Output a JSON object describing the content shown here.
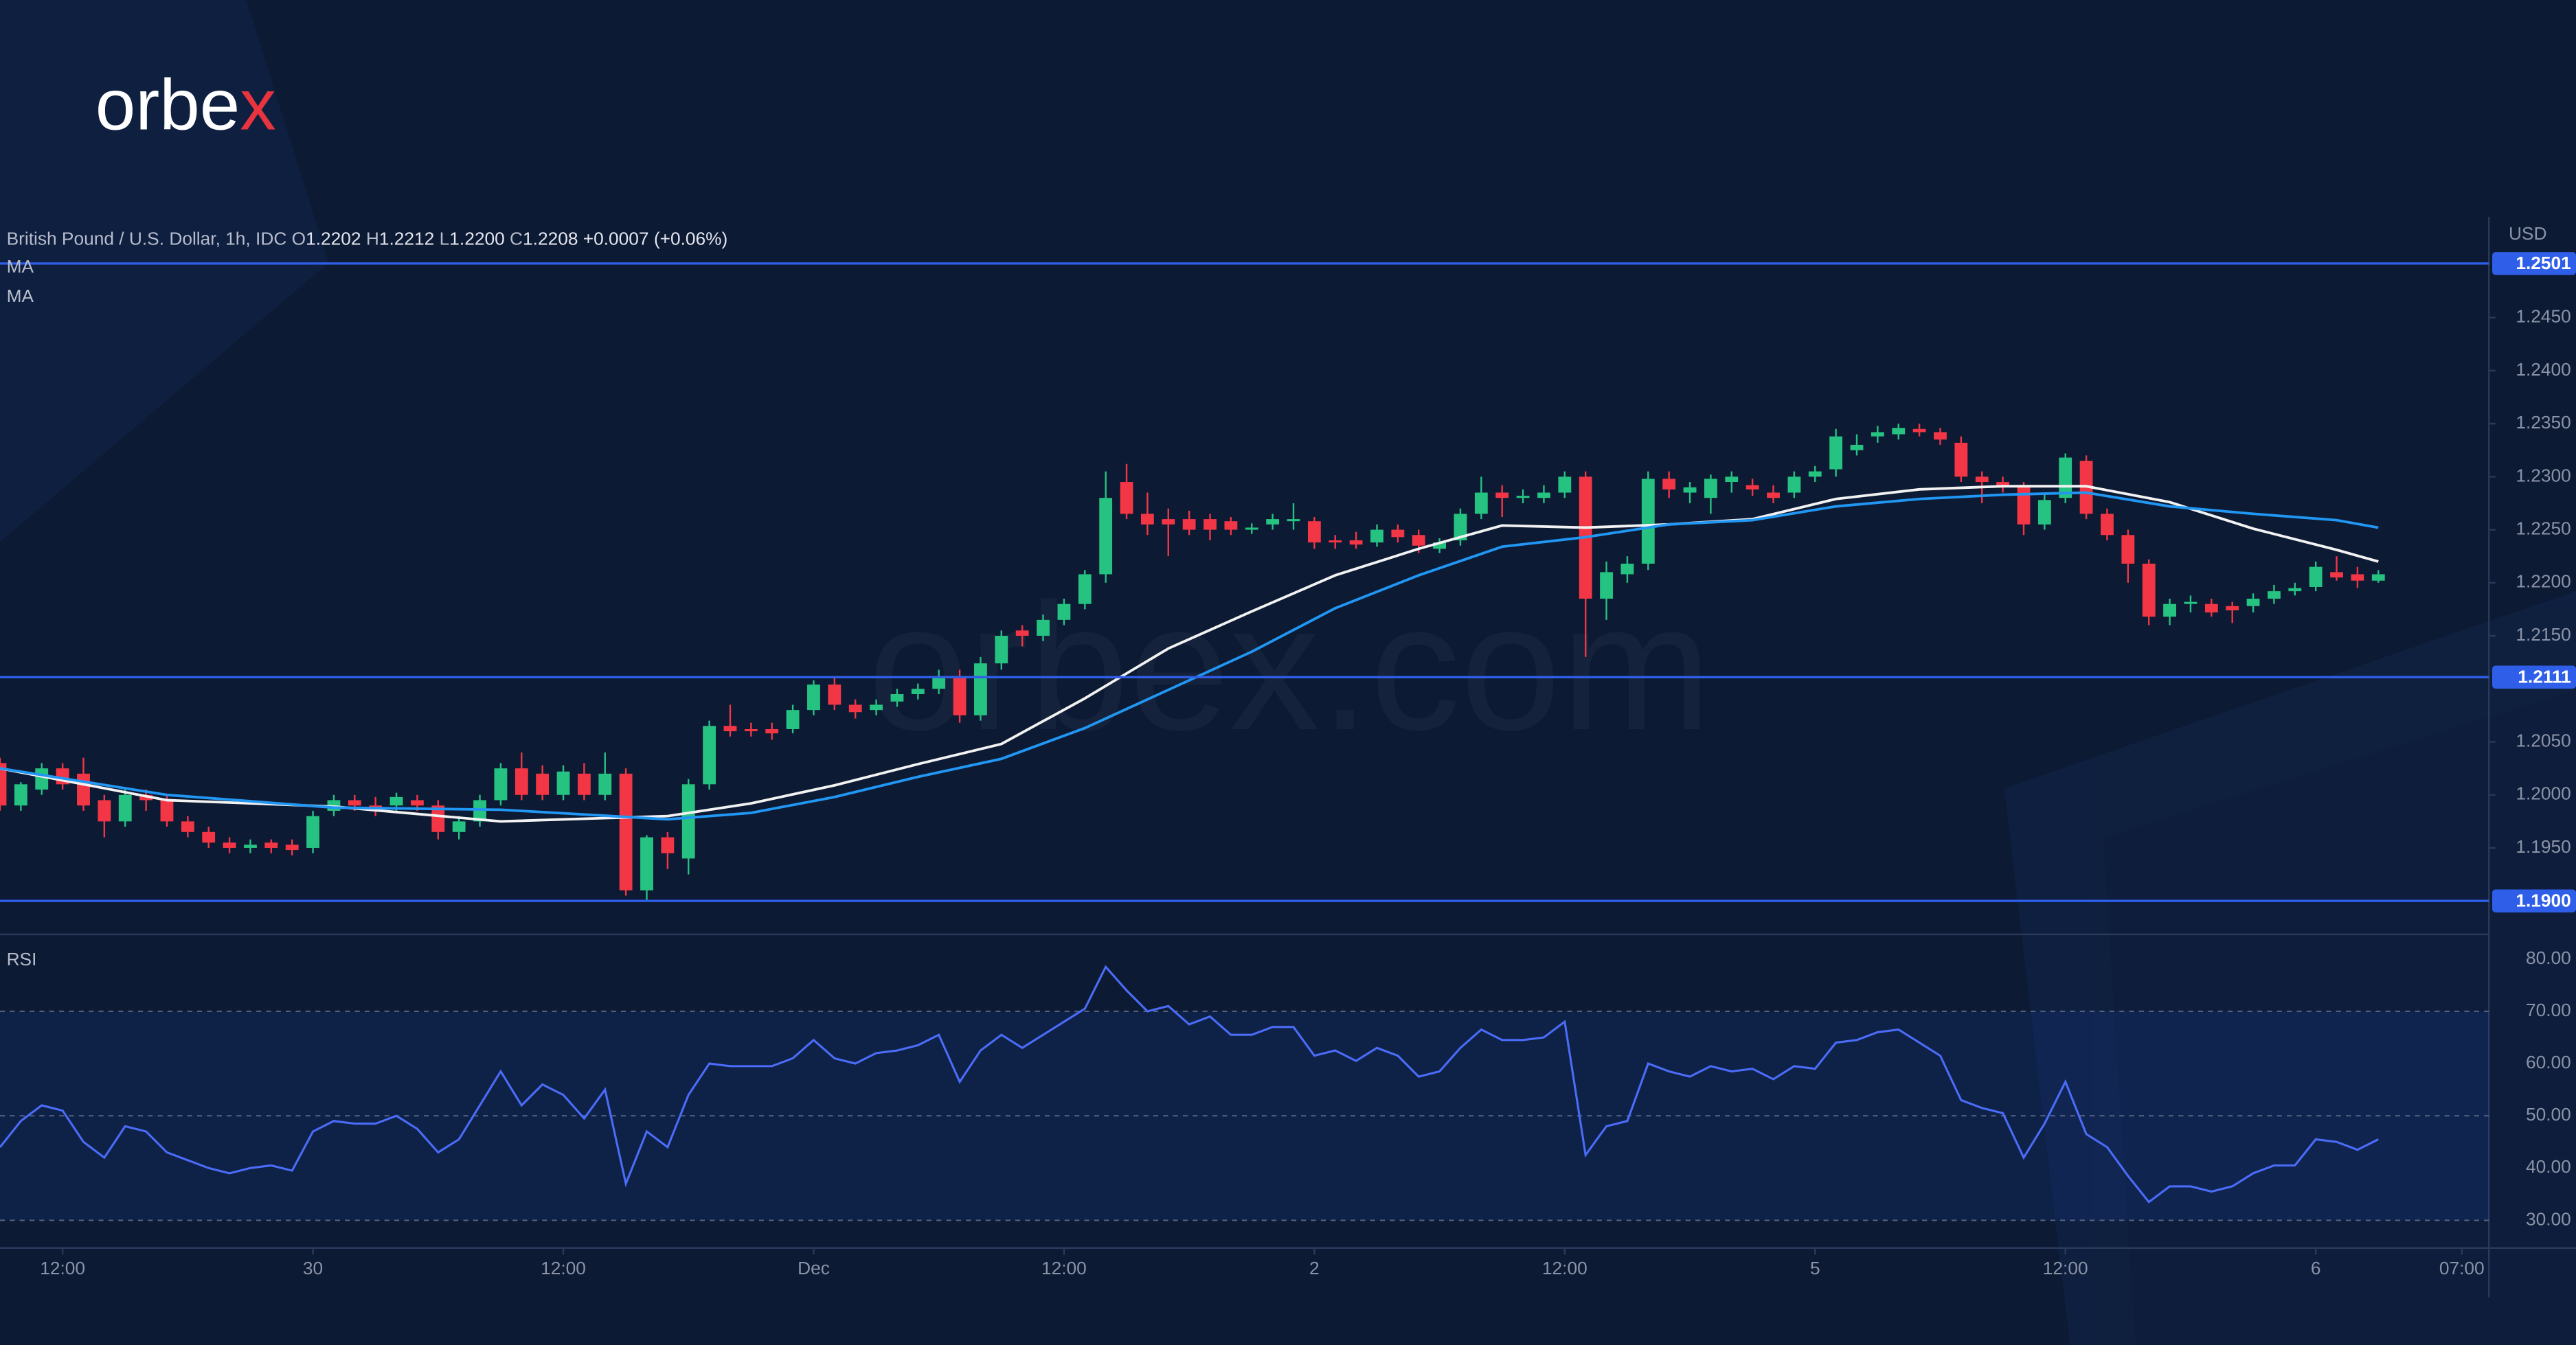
{
  "brand": {
    "logo_text": "orbe",
    "logo_accent": "x",
    "watermark": "orbex.com"
  },
  "chart_data": {
    "type": "candlestick",
    "header": {
      "title": "British Pound / U.S. Dollar, 1h, IDC",
      "open_label": "O",
      "open": "1.2202",
      "high_label": "H",
      "high": "1.2212",
      "low_label": "L",
      "low": "1.2200",
      "close_label": "C",
      "close": "1.2208",
      "change": "+0.0007 (+0.06%)"
    },
    "currency": "USD",
    "up_color": "#26c281",
    "down_color": "#f23645",
    "x": [
      -3,
      -2,
      -1,
      0,
      1,
      2,
      3,
      4,
      5,
      6,
      7,
      8,
      9,
      10,
      11,
      12,
      13,
      14,
      15,
      16,
      17,
      18,
      19,
      20,
      21,
      22,
      23,
      24,
      25,
      26,
      27,
      28,
      29,
      30,
      31,
      32,
      33,
      34,
      35,
      36,
      37,
      38,
      39,
      40,
      41,
      42,
      43,
      44,
      45,
      46,
      47,
      48,
      49,
      50,
      51,
      52,
      53,
      54,
      55,
      56,
      57,
      58,
      59,
      60,
      61,
      62,
      63,
      64,
      65,
      66,
      67,
      68,
      69,
      70,
      71,
      72,
      73,
      74,
      75,
      76,
      77,
      78,
      79,
      80,
      81,
      82,
      83,
      84,
      85,
      86,
      87,
      88,
      89,
      90,
      91,
      92,
      93,
      94,
      95,
      96,
      97,
      98,
      99,
      100,
      101,
      102,
      103,
      104,
      105,
      106,
      107,
      108,
      109,
      110,
      111
    ],
    "ohlc": [
      [
        1.203,
        1.2035,
        1.1985,
        1.199
      ],
      [
        1.199,
        1.2012,
        1.1985,
        1.201
      ],
      [
        1.2005,
        1.203,
        1.2,
        1.2025
      ],
      [
        1.2025,
        1.203,
        1.2005,
        1.201
      ],
      [
        1.202,
        1.2035,
        1.1985,
        1.199
      ],
      [
        1.1995,
        1.2,
        1.196,
        1.1975
      ],
      [
        1.1975,
        1.2005,
        1.197,
        1.2
      ],
      [
        1.2,
        1.2005,
        1.1985,
        1.1995
      ],
      [
        1.1995,
        1.2,
        1.197,
        1.1975
      ],
      [
        1.1975,
        1.198,
        1.196,
        1.1965
      ],
      [
        1.1965,
        1.197,
        1.195,
        1.1955
      ],
      [
        1.1955,
        1.196,
        1.1945,
        1.195
      ],
      [
        1.195,
        1.1958,
        1.1945,
        1.1953
      ],
      [
        1.1955,
        1.1958,
        1.1945,
        1.195
      ],
      [
        1.1953,
        1.1958,
        1.1943,
        1.1948
      ],
      [
        1.195,
        1.1985,
        1.1945,
        1.198
      ],
      [
        1.1985,
        1.2,
        1.198,
        1.1995
      ],
      [
        1.1995,
        1.2,
        1.1985,
        1.199
      ],
      [
        1.199,
        1.1998,
        1.198,
        1.1985
      ],
      [
        1.199,
        1.2002,
        1.1985,
        1.1998
      ],
      [
        1.1995,
        1.2,
        1.1985,
        1.199
      ],
      [
        1.199,
        1.1995,
        1.1958,
        1.1965
      ],
      [
        1.1965,
        1.198,
        1.1958,
        1.1975
      ],
      [
        1.1975,
        1.2,
        1.197,
        1.1995
      ],
      [
        1.1995,
        1.203,
        1.199,
        1.2025
      ],
      [
        1.2025,
        1.204,
        1.1995,
        1.2
      ],
      [
        1.202,
        1.2028,
        1.1995,
        1.2
      ],
      [
        1.2,
        1.2028,
        1.1995,
        1.2022
      ],
      [
        1.202,
        1.203,
        1.1995,
        1.2
      ],
      [
        1.2,
        1.204,
        1.1995,
        1.202
      ],
      [
        1.202,
        1.2025,
        1.1905,
        1.191
      ],
      [
        1.191,
        1.1962,
        1.19,
        1.196
      ],
      [
        1.196,
        1.1965,
        1.193,
        1.1945
      ],
      [
        1.194,
        1.2015,
        1.1925,
        1.201
      ],
      [
        1.201,
        1.207,
        1.2005,
        1.2065
      ],
      [
        1.2065,
        1.2085,
        1.2055,
        1.206
      ],
      [
        1.2062,
        1.2068,
        1.2055,
        1.206
      ],
      [
        1.2062,
        1.2068,
        1.2052,
        1.2058
      ],
      [
        1.2062,
        1.2085,
        1.2058,
        1.208
      ],
      [
        1.208,
        1.2108,
        1.2075,
        1.2104
      ],
      [
        1.2104,
        1.211,
        1.208,
        1.2085
      ],
      [
        1.2085,
        1.209,
        1.2072,
        1.2078
      ],
      [
        1.208,
        1.209,
        1.2075,
        1.2085
      ],
      [
        1.2088,
        1.21,
        1.2083,
        1.2095
      ],
      [
        1.2095,
        1.2105,
        1.209,
        1.21
      ],
      [
        1.21,
        1.2118,
        1.2095,
        1.211
      ],
      [
        1.2112,
        1.2118,
        1.2068,
        1.2075
      ],
      [
        1.2075,
        1.213,
        1.207,
        1.2124
      ],
      [
        1.2124,
        1.2155,
        1.2118,
        1.215
      ],
      [
        1.2155,
        1.216,
        1.214,
        1.215
      ],
      [
        1.215,
        1.217,
        1.2145,
        1.2165
      ],
      [
        1.2165,
        1.2185,
        1.216,
        1.218
      ],
      [
        1.218,
        1.2212,
        1.2175,
        1.2208
      ],
      [
        1.2208,
        1.2305,
        1.22,
        1.228
      ],
      [
        1.2295,
        1.2312,
        1.226,
        1.2265
      ],
      [
        1.2265,
        1.2285,
        1.2245,
        1.2255
      ],
      [
        1.226,
        1.227,
        1.2225,
        1.2255
      ],
      [
        1.226,
        1.2268,
        1.2245,
        1.225
      ],
      [
        1.226,
        1.2265,
        1.224,
        1.225
      ],
      [
        1.2258,
        1.2262,
        1.2245,
        1.225
      ],
      [
        1.225,
        1.2256,
        1.2246,
        1.2252
      ],
      [
        1.2255,
        1.2265,
        1.225,
        1.226
      ],
      [
        1.2258,
        1.2275,
        1.225,
        1.226
      ],
      [
        1.2258,
        1.2262,
        1.2232,
        1.2238
      ],
      [
        1.224,
        1.2245,
        1.2232,
        1.2238
      ],
      [
        1.224,
        1.2248,
        1.2232,
        1.2236
      ],
      [
        1.2238,
        1.2255,
        1.2234,
        1.225
      ],
      [
        1.225,
        1.2255,
        1.2238,
        1.2243
      ],
      [
        1.2245,
        1.225,
        1.2228,
        1.2235
      ],
      [
        1.2232,
        1.2242,
        1.2228,
        1.2238
      ],
      [
        1.224,
        1.227,
        1.2235,
        1.2265
      ],
      [
        1.2265,
        1.23,
        1.226,
        1.2285
      ],
      [
        1.2285,
        1.2292,
        1.2262,
        1.228
      ],
      [
        1.228,
        1.2288,
        1.2275,
        1.2282
      ],
      [
        1.228,
        1.2292,
        1.2275,
        1.2285
      ],
      [
        1.2285,
        1.2305,
        1.228,
        1.23
      ],
      [
        1.23,
        1.2305,
        1.213,
        1.2185
      ],
      [
        1.2185,
        1.222,
        1.2165,
        1.221
      ],
      [
        1.2208,
        1.2225,
        1.22,
        1.2218
      ],
      [
        1.2218,
        1.2305,
        1.2212,
        1.2298
      ],
      [
        1.2298,
        1.2305,
        1.228,
        1.2288
      ],
      [
        1.2285,
        1.2295,
        1.2275,
        1.229
      ],
      [
        1.228,
        1.2302,
        1.2265,
        1.2298
      ],
      [
        1.2295,
        1.2305,
        1.2285,
        1.23
      ],
      [
        1.2292,
        1.2298,
        1.2282,
        1.2288
      ],
      [
        1.2285,
        1.2292,
        1.2275,
        1.228
      ],
      [
        1.2285,
        1.2305,
        1.228,
        1.23
      ],
      [
        1.23,
        1.231,
        1.2295,
        1.2305
      ],
      [
        1.2307,
        1.2345,
        1.23,
        1.2338
      ],
      [
        1.2325,
        1.234,
        1.232,
        1.233
      ],
      [
        1.2338,
        1.2348,
        1.2332,
        1.2342
      ],
      [
        1.234,
        1.235,
        1.2335,
        1.2346
      ],
      [
        1.2345,
        1.235,
        1.2338,
        1.2342
      ],
      [
        1.2342,
        1.2346,
        1.233,
        1.2335
      ],
      [
        1.2332,
        1.2338,
        1.2295,
        1.23
      ],
      [
        1.23,
        1.2305,
        1.2275,
        1.2295
      ],
      [
        1.2295,
        1.23,
        1.2285,
        1.229
      ],
      [
        1.229,
        1.2295,
        1.2245,
        1.2255
      ],
      [
        1.2255,
        1.2285,
        1.225,
        1.2278
      ],
      [
        1.228,
        1.2322,
        1.2275,
        1.2318
      ],
      [
        1.2315,
        1.232,
        1.226,
        1.2265
      ],
      [
        1.2265,
        1.227,
        1.224,
        1.2245
      ],
      [
        1.2245,
        1.225,
        1.22,
        1.2218
      ],
      [
        1.2218,
        1.2222,
        1.216,
        1.2168
      ],
      [
        1.2168,
        1.2185,
        1.216,
        1.218
      ],
      [
        1.218,
        1.2188,
        1.2172,
        1.2182
      ],
      [
        1.218,
        1.2185,
        1.2168,
        1.2172
      ],
      [
        1.2178,
        1.2182,
        1.2162,
        1.2174
      ],
      [
        1.2178,
        1.219,
        1.2172,
        1.2185
      ],
      [
        1.2185,
        1.2198,
        1.218,
        1.2192
      ],
      [
        1.2192,
        1.22,
        1.2188,
        1.2195
      ],
      [
        1.2196,
        1.222,
        1.2192,
        1.2215
      ],
      [
        1.221,
        1.2225,
        1.2202,
        1.2205
      ],
      [
        1.2208,
        1.2215,
        1.2195,
        1.2202
      ],
      [
        1.2202,
        1.2212,
        1.22,
        1.2208
      ]
    ],
    "xlim": [
      -3,
      116.3
    ],
    "xticks": [
      {
        "value": 0,
        "label": "12:00"
      },
      {
        "value": 12,
        "label": "30"
      },
      {
        "value": 24,
        "label": "12:00"
      },
      {
        "value": 36,
        "label": "Dec"
      },
      {
        "value": 48,
        "label": "12:00"
      },
      {
        "value": 60,
        "label": "2"
      },
      {
        "value": 72,
        "label": "12:00"
      },
      {
        "value": 84,
        "label": "5"
      },
      {
        "value": 96,
        "label": "12:00"
      },
      {
        "value": 108,
        "label": "6"
      },
      {
        "value": 115,
        "label": "07:00"
      }
    ],
    "ylim": [
      1.187,
      1.2545
    ],
    "yticks": [
      {
        "value": 1.245,
        "label": "1.2450"
      },
      {
        "value": 1.24,
        "label": "1.2400"
      },
      {
        "value": 1.235,
        "label": "1.2350"
      },
      {
        "value": 1.23,
        "label": "1.2300"
      },
      {
        "value": 1.225,
        "label": "1.2250"
      },
      {
        "value": 1.22,
        "label": "1.2200"
      },
      {
        "value": 1.215,
        "label": "1.2150"
      },
      {
        "value": 1.205,
        "label": "1.2050"
      },
      {
        "value": 1.2,
        "label": "1.2000"
      },
      {
        "value": 1.195,
        "label": "1.1950"
      }
    ],
    "levels": {
      "color": "#2f5fe8",
      "values": [
        1.2501,
        1.2111,
        {
          "value": 1.19,
          "label": "1.1900"
        }
      ]
    },
    "series": [
      {
        "name": "MA",
        "color": "#f2f2f2",
        "x": [
          -3,
          5,
          13,
          21,
          29,
          33,
          37,
          41,
          45,
          49,
          53,
          57,
          61,
          65,
          69,
          73,
          77,
          81,
          85,
          89,
          93,
          97,
          101,
          105,
          109,
          111
        ],
        "values": [
          1.2025,
          1.1995,
          1.1989,
          1.1975,
          1.198,
          1.1992,
          1.2009,
          1.2029,
          1.2048,
          1.2091,
          1.2138,
          1.2173,
          1.2207,
          1.2232,
          1.2254,
          1.2252,
          1.2255,
          1.226,
          1.2279,
          1.2288,
          1.2291,
          1.2291,
          1.2276,
          1.2251,
          1.2231,
          1.222
        ]
      },
      {
        "name": "MA",
        "color": "#2196f3",
        "x": [
          -3,
          5,
          13,
          21,
          29,
          33,
          37,
          41,
          45,
          49,
          53,
          57,
          61,
          65,
          69,
          73,
          77,
          81,
          85,
          89,
          93,
          97,
          101,
          105,
          109,
          111
        ],
        "values": [
          1.2025,
          1.2,
          1.1988,
          1.1986,
          1.1977,
          1.1983,
          1.1998,
          1.2017,
          1.2034,
          1.2063,
          1.2099,
          1.2135,
          1.2176,
          1.2207,
          1.2234,
          1.2243,
          1.2255,
          1.2259,
          1.2272,
          1.2279,
          1.2283,
          1.2285,
          1.2272,
          1.2265,
          1.2259,
          1.2252
        ]
      }
    ],
    "rsi": {
      "name": "RSI",
      "color": "#4a6cf7",
      "values": [
        44,
        49,
        52,
        51,
        45,
        42,
        48,
        47,
        43,
        41.5,
        40,
        39,
        40,
        40.5,
        39.5,
        47,
        49,
        48.5,
        48.5,
        50,
        47.5,
        43,
        45.5,
        52,
        58.5,
        52,
        56,
        54,
        49.5,
        55,
        37,
        47,
        44,
        54,
        60,
        59.5,
        59.5,
        59.5,
        61,
        64.5,
        61,
        60,
        62,
        62.5,
        63.5,
        65.5,
        56.5,
        62.5,
        65.5,
        63,
        65.5,
        68,
        70.5,
        78.5,
        74,
        70,
        71,
        67.5,
        69,
        65.5,
        65.5,
        67,
        67,
        61.5,
        62.5,
        60.5,
        63,
        61.5,
        57.5,
        58.5,
        63,
        66.5,
        64.5,
        64.5,
        65,
        68,
        42.5,
        48,
        49,
        60,
        58.5,
        57.5,
        59.5,
        58.5,
        59,
        57,
        59.5,
        59,
        64,
        64.5,
        66,
        66.5,
        64,
        61.5,
        53,
        51.5,
        50.5,
        42,
        48.5,
        56.5,
        46.5,
        44,
        38.5,
        33.5,
        36.5,
        36.5,
        35.5,
        36.5,
        39,
        40.5,
        40.5,
        45.5,
        45,
        43.5,
        45.5
      ],
      "ylim": [
        24.7,
        84.4
      ],
      "yticks": [
        {
          "value": 80,
          "label": "80.00"
        },
        {
          "value": 70,
          "label": "70.00"
        },
        {
          "value": 60,
          "label": "60.00"
        },
        {
          "value": 50,
          "label": "50.00"
        },
        {
          "value": 40,
          "label": "40.00"
        },
        {
          "value": 30,
          "label": "30.00"
        }
      ],
      "band": [
        30,
        70
      ],
      "guides": [
        30,
        50,
        70
      ]
    }
  }
}
